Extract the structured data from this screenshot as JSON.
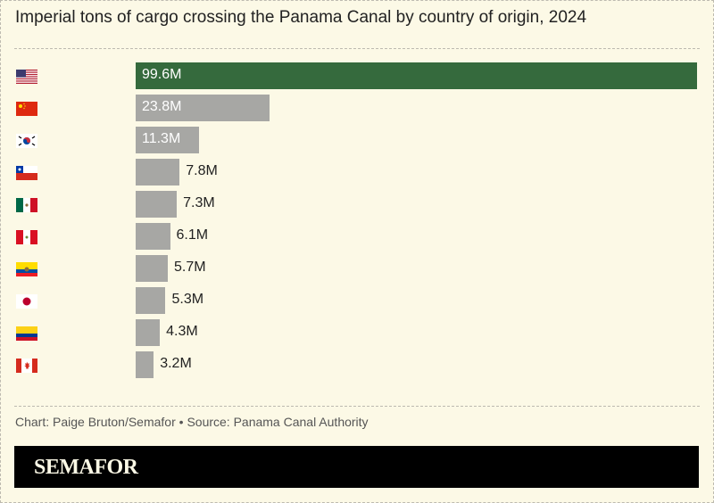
{
  "title": "Imperial tons of cargo crossing the Panama Canal by country of origin, 2024",
  "source": "Chart: Paige Bruton/Semafor • Source: Panama Canal Authority",
  "brand": "SEMAFOR",
  "colors": {
    "highlight": "#356a3d",
    "bar": "#a7a7a4",
    "background": "#fcf9e6"
  },
  "chart_data": {
    "type": "bar",
    "orientation": "horizontal",
    "title": "Imperial tons of cargo crossing the Panama Canal by country of origin, 2024",
    "categories": [
      "US",
      "China",
      "South Korea",
      "Chile",
      "Mexico",
      "Peru",
      "Ecuador",
      "Japan",
      "Colombia",
      "Canada"
    ],
    "flags": [
      "us-flag-icon",
      "china-flag-icon",
      "south-korea-flag-icon",
      "chile-flag-icon",
      "mexico-flag-icon",
      "peru-flag-icon",
      "ecuador-flag-icon",
      "japan-flag-icon",
      "colombia-flag-icon",
      "canada-flag-icon"
    ],
    "values": [
      99.6,
      23.8,
      11.3,
      7.8,
      7.3,
      6.1,
      5.7,
      5.3,
      4.3,
      3.2
    ],
    "labels": [
      "99.6M",
      "23.8M",
      "11.3M",
      "7.8M",
      "7.3M",
      "6.1M",
      "5.7M",
      "5.3M",
      "4.3M",
      "3.2M"
    ],
    "unit": "M",
    "highlighted": "US",
    "grid": false
  }
}
